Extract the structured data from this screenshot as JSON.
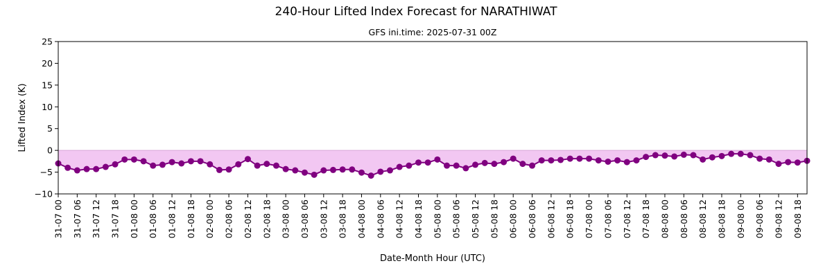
{
  "chart_data": {
    "type": "line",
    "title": "240-Hour Lifted Index Forecast for NARATHIWAT",
    "subtitle": "GFS ini.time: 2025-07-31 00Z",
    "xlabel": "Date-Month Hour (UTC)",
    "ylabel": "Lifted Index (K)",
    "ylim": [
      -10,
      25
    ],
    "yticks": [
      -10,
      -5,
      0,
      5,
      10,
      15,
      20,
      25
    ],
    "x_step_hours": 3,
    "xtick_step_hours": 6,
    "xtick_labels": [
      "31-07 00",
      "31-07 06",
      "31-07 12",
      "31-07 18",
      "01-08 00",
      "01-08 06",
      "01-08 12",
      "01-08 18",
      "02-08 00",
      "02-08 06",
      "02-08 12",
      "02-08 18",
      "03-08 00",
      "03-08 06",
      "03-08 12",
      "03-08 18",
      "04-08 00",
      "04-08 06",
      "04-08 12",
      "04-08 18",
      "05-08 00",
      "05-08 06",
      "05-08 12",
      "05-08 18",
      "06-08 00",
      "06-08 06",
      "06-08 12",
      "06-08 18",
      "07-08 00",
      "07-08 06",
      "07-08 12",
      "07-08 18",
      "08-08 00",
      "08-08 06",
      "08-08 12",
      "08-08 18",
      "09-08 00",
      "09-08 06",
      "09-08 12",
      "09-08 18"
    ],
    "grid": false,
    "fill_below_zero": true,
    "series": [
      {
        "color": "#800080",
        "fill_color": "#f2c7f2",
        "values": [
          -3.0,
          -4.0,
          -4.6,
          -4.3,
          -4.3,
          -3.8,
          -3.2,
          -2.1,
          -2.1,
          -2.5,
          -3.5,
          -3.3,
          -2.7,
          -3.0,
          -2.5,
          -2.5,
          -3.2,
          -4.5,
          -4.4,
          -3.2,
          -2.0,
          -3.5,
          -3.1,
          -3.5,
          -4.3,
          -4.6,
          -5.1,
          -5.6,
          -4.6,
          -4.5,
          -4.4,
          -4.4,
          -5.1,
          -5.8,
          -4.9,
          -4.6,
          -3.8,
          -3.5,
          -2.8,
          -2.8,
          -2.1,
          -3.5,
          -3.5,
          -4.1,
          -3.3,
          -2.9,
          -3.1,
          -2.7,
          -1.9,
          -3.1,
          -3.5,
          -2.3,
          -2.3,
          -2.2,
          -1.9,
          -1.9,
          -1.9,
          -2.3,
          -2.6,
          -2.3,
          -2.7,
          -2.3,
          -1.5,
          -1.1,
          -1.2,
          -1.4,
          -1.0,
          -1.1,
          -2.1,
          -1.6,
          -1.3,
          -0.8,
          -0.8,
          -1.1,
          -1.9,
          -2.1,
          -3.1,
          -2.7,
          -2.8,
          -2.4
        ]
      }
    ]
  }
}
